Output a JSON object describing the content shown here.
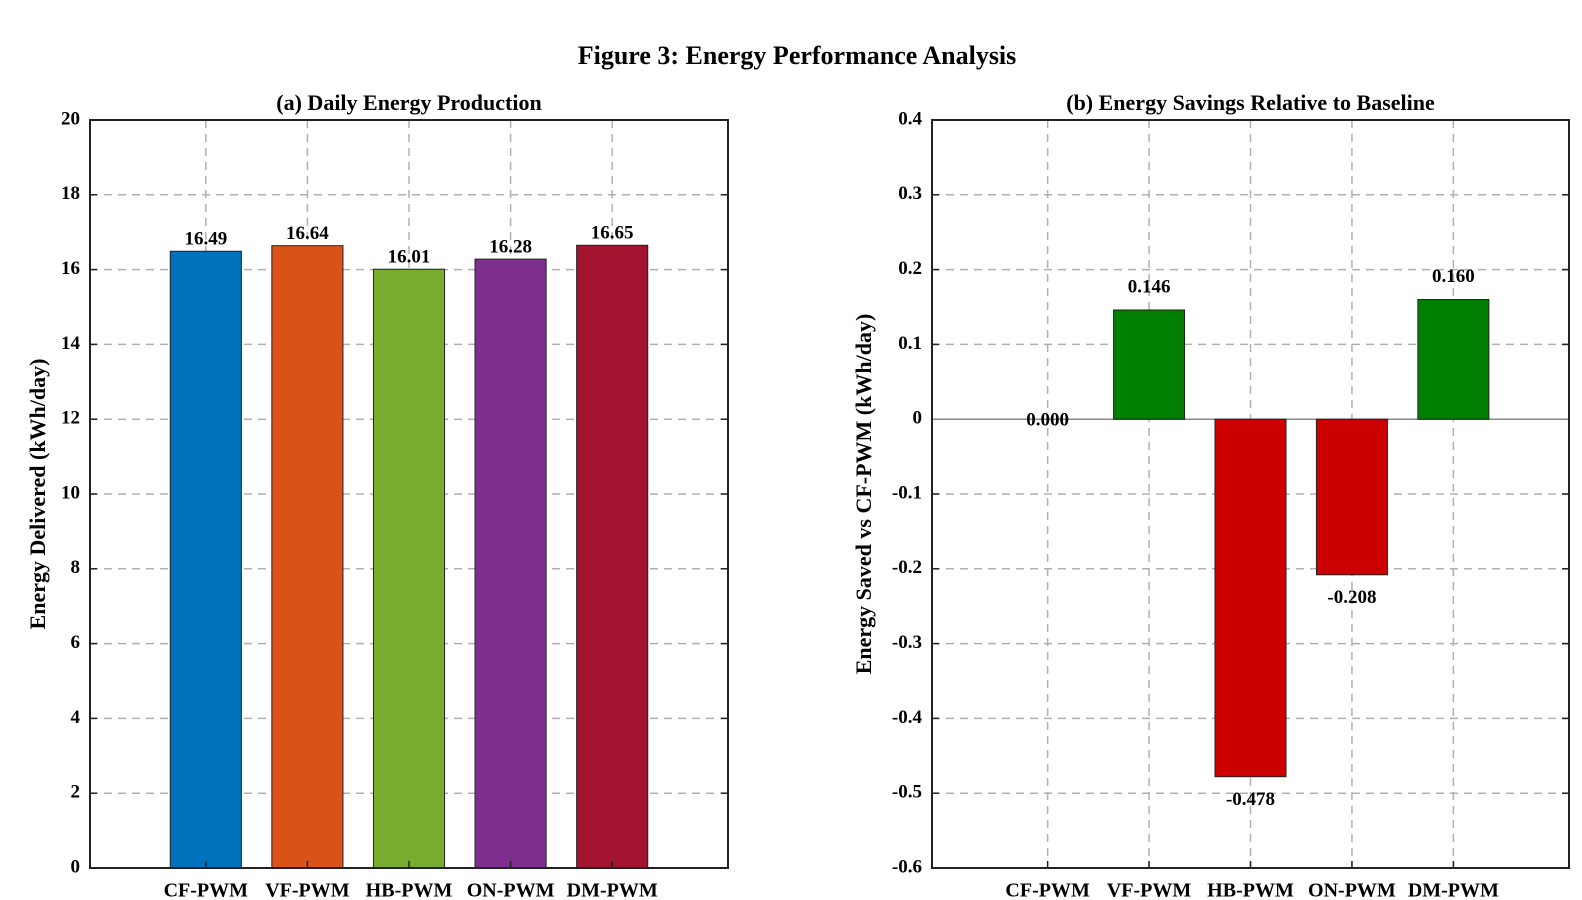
{
  "title": "Figure 3: Energy Performance Analysis",
  "chart_data": [
    {
      "type": "bar",
      "title": "(a) Daily Energy Production",
      "ylabel": "Energy Delivered (kWh/day)",
      "categories": [
        "CF-PWM",
        "VF-PWM",
        "HB-PWM",
        "ON-PWM",
        "DM-PWM"
      ],
      "values": [
        16.49,
        16.64,
        16.01,
        16.28,
        16.65
      ],
      "colors": [
        "#0072bd",
        "#d95319",
        "#77ac30",
        "#7e2f8e",
        "#a2142f"
      ],
      "ylim": [
        0,
        20
      ],
      "yticks": [
        0,
        2,
        4,
        6,
        8,
        10,
        12,
        14,
        16,
        18,
        20
      ],
      "grid": true
    },
    {
      "type": "bar",
      "title": "(b) Energy Savings Relative to Baseline",
      "ylabel": "Energy Saved vs CF-PWM (kWh/day)",
      "categories": [
        "CF-PWM",
        "VF-PWM",
        "HB-PWM",
        "ON-PWM",
        "DM-PWM"
      ],
      "values": [
        0,
        0.146,
        -0.478,
        -0.208,
        0.16
      ],
      "value_labels": [
        "0.000",
        "0.146",
        "-0.478",
        "-0.208",
        "0.160"
      ],
      "colors": [
        "#007f00",
        "#007f00",
        "#cc0000",
        "#cc0000",
        "#007f00"
      ],
      "ylim": [
        -0.6,
        0.4
      ],
      "yticks": [
        -0.6,
        -0.5,
        -0.4,
        -0.3,
        -0.2,
        -0.1,
        0,
        0.1,
        0.2,
        0.3,
        0.4
      ],
      "grid": true
    }
  ]
}
